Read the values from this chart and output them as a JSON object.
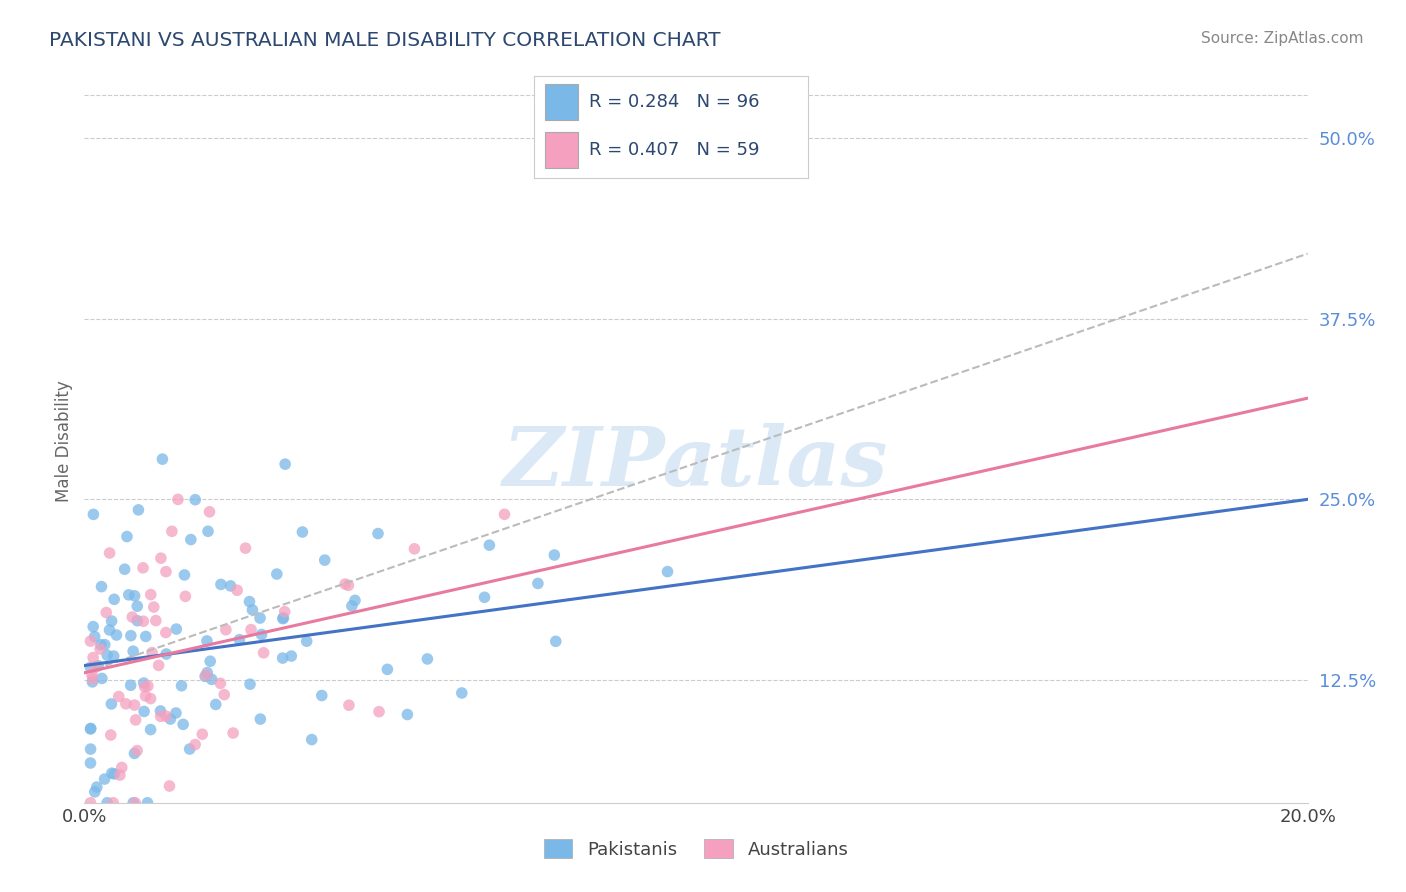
{
  "title": "PAKISTANI VS AUSTRALIAN MALE DISABILITY CORRELATION CHART",
  "source": "Source: ZipAtlas.com",
  "ylabel": "Male Disability",
  "pakistani_R": 0.284,
  "pakistani_N": 96,
  "australian_R": 0.407,
  "australian_N": 59,
  "watermark_text": "ZIPatlas",
  "pakistani_color": "#7ab8e8",
  "australian_color": "#f4a0be",
  "pakistani_line_color": "#4472c4",
  "australian_line_color": "#e87aa0",
  "ref_line_color": "#bbbbbb",
  "background_color": "#ffffff",
  "grid_color": "#cccccc",
  "title_color": "#2c4770",
  "xmin": 0.0,
  "xmax": 0.2,
  "ymin": 0.04,
  "ymax": 0.54,
  "pakistani_seed": 42,
  "australian_seed": 7,
  "ytick_vals": [
    0.125,
    0.25,
    0.375,
    0.5
  ],
  "ytick_labels": [
    "12.5%",
    "25.0%",
    "37.5%",
    "50.0%"
  ],
  "xtick_vals": [
    0.0,
    0.2
  ],
  "xtick_labels": [
    "0.0%",
    "20.0%"
  ],
  "pak_line_y0": 0.135,
  "pak_line_y1": 0.25,
  "aus_line_y0": 0.13,
  "aus_line_y1": 0.32,
  "ref_line_y0": 0.13,
  "ref_line_y1": 0.42
}
